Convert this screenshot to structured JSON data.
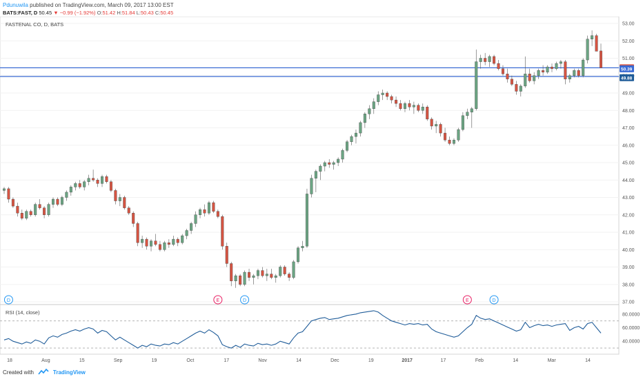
{
  "header": {
    "author": "Pdunuwila",
    "published_text": "published on TradingView.com, March 09, 2017 13:00 EST",
    "symbol": "BATS:FAST, D",
    "last": "50.45",
    "change": "▼ −0.99 (−1.92%)",
    "open_label": "O:",
    "open": "51.42",
    "high_label": "H:",
    "high": "51.84",
    "low_label": "L:",
    "low": "50.43",
    "close_label": "C:",
    "close": "50.45"
  },
  "chart_data": {
    "type": "candlestick",
    "title": "FASTENAL CO, D, BATS",
    "colors": {
      "up": "#6ba583",
      "down": "#d75442",
      "hline": "#3a6bd4",
      "rsi": "#1f5c99",
      "axis_text": "#555555"
    },
    "x_ticks": [
      "18",
      "Aug",
      "15",
      "Sep",
      "19",
      "Oct",
      "17",
      "Nov",
      "14",
      "Dec",
      "19",
      "2017",
      "17",
      "Feb",
      "14",
      "Mar",
      "14"
    ],
    "price_axis": {
      "min": 37,
      "max": 53,
      "ticks": [
        "53.00",
        "52.00",
        "51.00",
        "50.00",
        "49.00",
        "48.00",
        "47.00",
        "46.00",
        "45.00",
        "44.00",
        "43.00",
        "42.00",
        "41.00",
        "40.00",
        "39.00",
        "38.00",
        "37.00"
      ]
    },
    "price_tags": [
      {
        "value": 50.45,
        "label": "50.45",
        "color": "#d75442"
      },
      {
        "value": 50.39,
        "label": "50.39",
        "color": "#3a6bd4"
      },
      {
        "value": 49.88,
        "label": "49.88",
        "color": "#1f5c99"
      }
    ],
    "horizontal_lines": [
      50.45,
      49.95
    ],
    "candles": [
      [
        43.4,
        43.6,
        43.2,
        43.5
      ],
      [
        43.5,
        43.6,
        42.7,
        42.9
      ],
      [
        42.9,
        43.0,
        42.4,
        42.5
      ],
      [
        42.5,
        42.7,
        41.9,
        42.1
      ],
      [
        42.1,
        42.3,
        41.7,
        41.8
      ],
      [
        41.8,
        42.3,
        41.7,
        42.2
      ],
      [
        42.2,
        42.3,
        41.9,
        42.0
      ],
      [
        42.0,
        42.7,
        41.9,
        42.6
      ],
      [
        42.6,
        42.9,
        42.3,
        42.4
      ],
      [
        42.4,
        42.5,
        41.8,
        42.0
      ],
      [
        42.0,
        42.7,
        41.9,
        42.6
      ],
      [
        42.6,
        43.0,
        42.4,
        42.9
      ],
      [
        42.9,
        43.0,
        42.5,
        42.6
      ],
      [
        42.6,
        43.1,
        42.5,
        43.0
      ],
      [
        43.0,
        43.4,
        42.8,
        43.3
      ],
      [
        43.3,
        43.7,
        43.1,
        43.6
      ],
      [
        43.6,
        43.9,
        43.4,
        43.8
      ],
      [
        43.8,
        44.0,
        43.5,
        43.6
      ],
      [
        43.6,
        44.0,
        43.4,
        43.9
      ],
      [
        43.9,
        44.3,
        43.7,
        44.1
      ],
      [
        44.1,
        44.6,
        43.9,
        44.0
      ],
      [
        44.0,
        44.1,
        43.6,
        43.8
      ],
      [
        43.8,
        44.3,
        43.6,
        44.2
      ],
      [
        44.2,
        44.3,
        43.8,
        43.9
      ],
      [
        43.9,
        44.0,
        43.3,
        43.4
      ],
      [
        43.4,
        43.5,
        42.6,
        42.8
      ],
      [
        42.8,
        43.2,
        42.5,
        43.0
      ],
      [
        43.0,
        43.1,
        42.3,
        42.4
      ],
      [
        42.4,
        42.5,
        42.0,
        42.1
      ],
      [
        42.1,
        42.2,
        41.3,
        41.5
      ],
      [
        41.5,
        41.6,
        40.2,
        40.4
      ],
      [
        40.4,
        40.8,
        40.1,
        40.6
      ],
      [
        40.6,
        40.7,
        40.0,
        40.2
      ],
      [
        40.2,
        40.6,
        39.9,
        40.5
      ],
      [
        40.5,
        40.9,
        40.2,
        40.3
      ],
      [
        40.3,
        40.5,
        39.9,
        40.0
      ],
      [
        40.0,
        40.5,
        39.9,
        40.4
      ],
      [
        40.4,
        40.6,
        40.1,
        40.3
      ],
      [
        40.3,
        40.8,
        40.2,
        40.6
      ],
      [
        40.6,
        40.7,
        40.2,
        40.4
      ],
      [
        40.4,
        40.9,
        40.3,
        40.8
      ],
      [
        40.8,
        41.2,
        40.6,
        41.1
      ],
      [
        41.1,
        41.6,
        40.9,
        41.5
      ],
      [
        41.5,
        42.2,
        41.3,
        42.0
      ],
      [
        42.0,
        42.4,
        41.8,
        42.3
      ],
      [
        42.3,
        42.6,
        41.9,
        42.1
      ],
      [
        42.1,
        42.8,
        42.0,
        42.7
      ],
      [
        42.7,
        42.8,
        42.1,
        42.2
      ],
      [
        42.2,
        42.3,
        41.8,
        41.9
      ],
      [
        41.9,
        42.0,
        40.0,
        40.2
      ],
      [
        40.2,
        40.4,
        39.0,
        39.2
      ],
      [
        39.2,
        39.3,
        37.9,
        38.2
      ],
      [
        38.2,
        38.6,
        37.8,
        38.5
      ],
      [
        38.5,
        38.6,
        37.9,
        38.0
      ],
      [
        38.0,
        38.8,
        37.9,
        38.7
      ],
      [
        38.7,
        38.9,
        38.2,
        38.4
      ],
      [
        38.4,
        38.6,
        38.0,
        38.5
      ],
      [
        38.5,
        38.9,
        38.3,
        38.8
      ],
      [
        38.8,
        39.0,
        38.4,
        38.5
      ],
      [
        38.5,
        38.9,
        38.2,
        38.6
      ],
      [
        38.6,
        38.9,
        38.3,
        38.4
      ],
      [
        38.4,
        38.6,
        38.1,
        38.5
      ],
      [
        38.5,
        39.1,
        38.4,
        39.0
      ],
      [
        39.0,
        39.1,
        38.5,
        38.6
      ],
      [
        38.6,
        38.7,
        38.2,
        38.4
      ],
      [
        38.4,
        39.4,
        38.3,
        39.3
      ],
      [
        39.3,
        40.2,
        39.2,
        40.1
      ],
      [
        40.1,
        40.5,
        39.9,
        40.2
      ],
      [
        40.2,
        43.5,
        40.1,
        43.2
      ],
      [
        43.2,
        44.3,
        43.0,
        44.1
      ],
      [
        44.1,
        44.6,
        43.3,
        44.5
      ],
      [
        44.5,
        44.9,
        44.0,
        44.8
      ],
      [
        44.8,
        45.1,
        44.5,
        45.0
      ],
      [
        45.0,
        45.2,
        44.7,
        44.9
      ],
      [
        44.9,
        45.1,
        44.6,
        45.0
      ],
      [
        45.0,
        45.3,
        44.8,
        45.2
      ],
      [
        45.2,
        45.8,
        45.0,
        45.7
      ],
      [
        45.7,
        46.3,
        45.6,
        46.2
      ],
      [
        46.2,
        46.6,
        46.0,
        46.5
      ],
      [
        46.5,
        46.9,
        46.1,
        46.7
      ],
      [
        46.7,
        47.4,
        46.5,
        47.3
      ],
      [
        47.3,
        47.9,
        47.0,
        47.8
      ],
      [
        47.8,
        48.3,
        47.5,
        48.1
      ],
      [
        48.1,
        48.7,
        47.8,
        48.5
      ],
      [
        48.5,
        49.1,
        48.3,
        48.9
      ],
      [
        48.9,
        49.2,
        48.6,
        49.0
      ],
      [
        49.0,
        49.1,
        48.6,
        48.8
      ],
      [
        48.8,
        48.9,
        48.4,
        48.6
      ],
      [
        48.6,
        48.8,
        48.2,
        48.4
      ],
      [
        48.4,
        48.6,
        48.0,
        48.1
      ],
      [
        48.1,
        48.5,
        47.9,
        48.4
      ],
      [
        48.4,
        48.6,
        48.0,
        48.2
      ],
      [
        48.2,
        48.5,
        47.8,
        48.3
      ],
      [
        48.3,
        48.4,
        47.9,
        48.0
      ],
      [
        48.0,
        48.4,
        47.8,
        48.2
      ],
      [
        48.2,
        48.3,
        47.4,
        47.5
      ],
      [
        47.5,
        47.6,
        46.9,
        47.1
      ],
      [
        47.1,
        47.4,
        46.7,
        47.2
      ],
      [
        47.2,
        47.3,
        46.5,
        46.7
      ],
      [
        46.7,
        47.0,
        46.2,
        46.3
      ],
      [
        46.3,
        46.5,
        46.0,
        46.1
      ],
      [
        46.1,
        46.4,
        46.0,
        46.3
      ],
      [
        46.3,
        47.0,
        46.2,
        46.9
      ],
      [
        46.9,
        47.9,
        46.8,
        47.7
      ],
      [
        47.7,
        48.1,
        47.5,
        47.9
      ],
      [
        47.9,
        48.2,
        47.0,
        48.1
      ],
      [
        48.1,
        51.5,
        48.0,
        50.8
      ],
      [
        50.8,
        51.2,
        50.4,
        51.0
      ],
      [
        51.0,
        51.3,
        50.6,
        50.8
      ],
      [
        50.8,
        51.2,
        50.5,
        51.1
      ],
      [
        51.1,
        51.2,
        50.6,
        50.7
      ],
      [
        50.7,
        50.9,
        50.3,
        50.4
      ],
      [
        50.4,
        50.6,
        50.0,
        50.1
      ],
      [
        50.1,
        50.4,
        49.6,
        49.8
      ],
      [
        49.8,
        50.0,
        49.4,
        49.5
      ],
      [
        49.5,
        49.7,
        48.9,
        49.1
      ],
      [
        49.1,
        49.5,
        48.8,
        49.4
      ],
      [
        49.4,
        51.1,
        49.3,
        50.1
      ],
      [
        50.1,
        50.4,
        49.6,
        49.7
      ],
      [
        49.7,
        50.2,
        49.5,
        50.0
      ],
      [
        50.0,
        50.4,
        49.8,
        50.3
      ],
      [
        50.3,
        50.6,
        50.0,
        50.2
      ],
      [
        50.2,
        50.6,
        50.1,
        50.5
      ],
      [
        50.5,
        50.7,
        50.2,
        50.4
      ],
      [
        50.4,
        50.8,
        50.3,
        50.7
      ],
      [
        50.7,
        50.9,
        50.4,
        50.8
      ],
      [
        50.8,
        50.9,
        49.5,
        49.8
      ],
      [
        49.8,
        50.1,
        49.6,
        50.0
      ],
      [
        50.0,
        50.4,
        49.9,
        50.3
      ],
      [
        50.3,
        50.4,
        49.9,
        50.0
      ],
      [
        50.0,
        51.0,
        49.9,
        50.9
      ],
      [
        50.9,
        52.3,
        50.7,
        52.1
      ],
      [
        52.1,
        52.6,
        51.7,
        52.3
      ],
      [
        52.3,
        52.4,
        51.4,
        51.4
      ],
      [
        51.42,
        51.84,
        50.43,
        50.45
      ]
    ],
    "event_markers": [
      {
        "label": "D",
        "index": 1,
        "color": "#2196f3"
      },
      {
        "label": "E",
        "index": 48,
        "color": "#e91e63"
      },
      {
        "label": "D",
        "index": 54,
        "color": "#2196f3"
      },
      {
        "label": "E",
        "index": 104,
        "color": "#e91e63"
      },
      {
        "label": "D",
        "index": 110,
        "color": "#2196f3"
      }
    ],
    "rsi": {
      "title": "RSI (14, close)",
      "min": 25,
      "max": 90,
      "ticks": [
        "80.0000",
        "60.0000",
        "40.0000"
      ],
      "bands": [
        70,
        30
      ],
      "values": [
        42,
        44,
        40,
        38,
        36,
        39,
        37,
        42,
        40,
        36,
        45,
        48,
        46,
        50,
        52,
        55,
        57,
        55,
        58,
        60,
        58,
        52,
        56,
        54,
        48,
        42,
        46,
        42,
        38,
        34,
        30,
        34,
        32,
        36,
        34,
        33,
        36,
        35,
        38,
        36,
        40,
        44,
        48,
        52,
        55,
        52,
        57,
        53,
        48,
        35,
        32,
        30,
        34,
        31,
        36,
        34,
        33,
        37,
        35,
        36,
        34,
        36,
        40,
        38,
        36,
        45,
        52,
        54,
        62,
        70,
        72,
        74,
        75,
        72,
        73,
        74,
        76,
        78,
        79,
        80,
        82,
        83,
        84,
        85,
        83,
        78,
        74,
        70,
        68,
        66,
        64,
        66,
        65,
        66,
        64,
        65,
        58,
        54,
        52,
        50,
        48,
        46,
        48,
        54,
        60,
        65,
        78,
        74,
        72,
        73,
        70,
        67,
        64,
        61,
        58,
        55,
        57,
        68,
        60,
        63,
        65,
        63,
        64,
        62,
        64,
        65,
        66,
        56,
        60,
        62,
        58,
        66,
        68,
        60,
        52
      ]
    }
  },
  "footer": {
    "created_with": "Created with",
    "brand": "TradingView"
  }
}
